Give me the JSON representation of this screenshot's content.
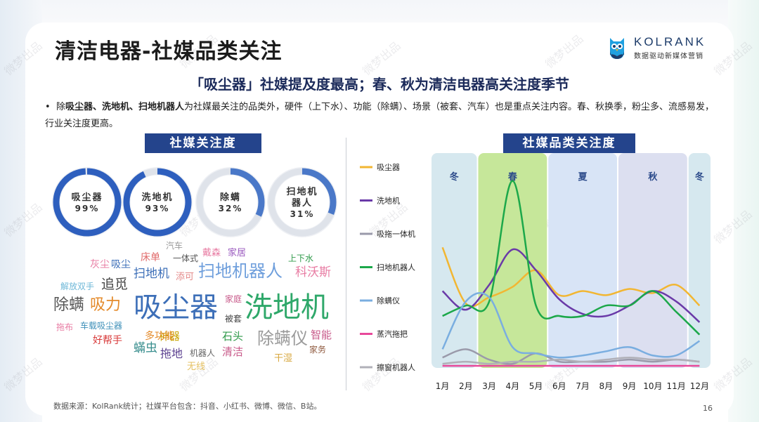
{
  "title": "清洁电器-社媒品类关注",
  "logo": {
    "brand": "KOLRANK",
    "tagline": "数据驱动新媒体营销"
  },
  "subtitle": "「吸尘器」社媒提及度最高；春、秋为清洁电器高关注度季节",
  "bullet": {
    "prefix": "除",
    "bold": "吸尘器、洗地机、扫地机器人",
    "text": "为社媒最关注的品类外，硬件（上下水）、功能（除螨）、场景（被套、汽车）也是重点关注内容。春、秋换季，粉尘多、流感易发，行业关注度更高。"
  },
  "left_header": "社媒关注度",
  "right_header": "社媒品类关注度",
  "footer": "数据来源：KolRank统计；社媒平台包含：抖音、小红书、微博、微信、B站。",
  "page_number": "16",
  "watermark": "微梦出品",
  "donuts": [
    {
      "label": "吸尘器",
      "value_text": "99%",
      "value": 0.99,
      "color": "#2e5fbe"
    },
    {
      "label": "洗地机",
      "value_text": "93%",
      "value": 0.93,
      "color": "#2e5fbe"
    },
    {
      "label": "除螨",
      "value_text": "32%",
      "value": 0.32,
      "color": "#4a78c8"
    },
    {
      "label": "扫地机器人",
      "value_text": "31%",
      "value": 0.31,
      "color": "#4a78c8"
    }
  ],
  "word_cloud": [
    {
      "text": "吸尘器",
      "color": "#3d6fb8"
    },
    {
      "text": "洗地机",
      "color": "#2fa86a"
    },
    {
      "text": "扫地机器人",
      "color": "#6f9fdc"
    },
    {
      "text": "除螨",
      "color": "#555555"
    },
    {
      "text": "吸力",
      "color": "#e48a2a"
    },
    {
      "text": "除螨仪",
      "color": "#9a9a9a"
    },
    {
      "text": "追觅",
      "color": "#444444"
    },
    {
      "text": "扫地机",
      "color": "#3d6fb8"
    },
    {
      "text": "科沃斯",
      "color": "#e87ca3"
    },
    {
      "text": "神器",
      "color": "#c8a400"
    },
    {
      "text": "蟎虫",
      "color": "#3a8f8f"
    },
    {
      "text": "拖地",
      "color": "#5a3f8f"
    },
    {
      "text": "智能",
      "color": "#c85a8a"
    },
    {
      "text": "石头",
      "color": "#2f9a4a"
    },
    {
      "text": "清洁",
      "color": "#c85a8a"
    },
    {
      "text": "多功能",
      "color": "#e48a2a"
    },
    {
      "text": "好帮手",
      "color": "#d83a3a"
    },
    {
      "text": "床单",
      "color": "#e06a6a"
    },
    {
      "text": "吸尘",
      "color": "#3d6fb8"
    },
    {
      "text": "灰尘",
      "color": "#e87ca3"
    },
    {
      "text": "戴森",
      "color": "#e87ca3"
    },
    {
      "text": "添可",
      "color": "#e48a8a"
    },
    {
      "text": "家居",
      "color": "#9a5abf"
    },
    {
      "text": "上下水",
      "color": "#2f9a4a"
    },
    {
      "text": "解放双手",
      "color": "#6fb8d8"
    },
    {
      "text": "一体式",
      "color": "#555555"
    },
    {
      "text": "汽车",
      "color": "#9a9a9a"
    },
    {
      "text": "家庭",
      "color": "#c85a8a"
    },
    {
      "text": "被套",
      "color": "#444444"
    },
    {
      "text": "拖布",
      "color": "#e87ca3"
    },
    {
      "text": "车载吸尘器",
      "color": "#3d8fb8"
    },
    {
      "text": "机器人",
      "color": "#666666"
    },
    {
      "text": "家务",
      "color": "#8f5a3f"
    },
    {
      "text": "干湿",
      "color": "#d8a840"
    },
    {
      "text": "无线",
      "color": "#e4c060"
    }
  ],
  "chart_data": {
    "type": "line",
    "title": "社媒品类关注度",
    "x": [
      "1月",
      "2月",
      "3月",
      "4月",
      "5月",
      "6月",
      "7月",
      "8月",
      "9月",
      "10月",
      "11月",
      "12月"
    ],
    "seasons": [
      {
        "label": "冬",
        "from": 0,
        "to": 2,
        "color": "#d6e8ef"
      },
      {
        "label": "春",
        "from": 2,
        "to": 5,
        "color": "#c6e79a"
      },
      {
        "label": "夏",
        "from": 5,
        "to": 8,
        "color": "#d8e4f6"
      },
      {
        "label": "秋",
        "from": 8,
        "to": 11,
        "color": "#dcdff0"
      },
      {
        "label": "冬",
        "from": 11,
        "to": 12,
        "color": "#d6e8ef"
      }
    ],
    "ylim": [
      0,
      100
    ],
    "grid": false,
    "legend": "left",
    "series": [
      {
        "name": "吸尘器",
        "color": "#f2b632",
        "values": [
          58,
          31,
          34,
          39,
          47,
          35,
          37,
          35,
          38,
          36,
          40,
          30
        ]
      },
      {
        "name": "洗地机",
        "color": "#6a3aa8",
        "values": [
          37,
          28,
          40,
          57,
          47,
          33,
          26,
          25,
          30,
          37,
          32,
          22
        ]
      },
      {
        "name": "吸拖一体机",
        "color": "#9a9aaa",
        "values": [
          5,
          9,
          4,
          2,
          7,
          3,
          3,
          3,
          4,
          3,
          4,
          3
        ]
      },
      {
        "name": "扫地机器人",
        "color": "#1ca84a",
        "values": [
          25,
          30,
          32,
          90,
          30,
          25,
          25,
          30,
          30,
          37,
          27,
          16
        ]
      },
      {
        "name": "除螨仪",
        "color": "#7aaee0",
        "values": [
          9,
          32,
          34,
          10,
          7,
          5,
          6,
          8,
          10,
          6,
          6,
          13
        ]
      },
      {
        "name": "蒸汽拖把",
        "color": "#e8489a",
        "values": [
          1,
          1,
          1,
          1,
          1,
          1,
          1,
          1,
          1,
          1,
          1,
          1
        ]
      },
      {
        "name": "擦窗机器人",
        "color": "#b0b0b8",
        "values": [
          2,
          3,
          2,
          3,
          3,
          4,
          3,
          4,
          5,
          4,
          4,
          3
        ]
      }
    ]
  }
}
